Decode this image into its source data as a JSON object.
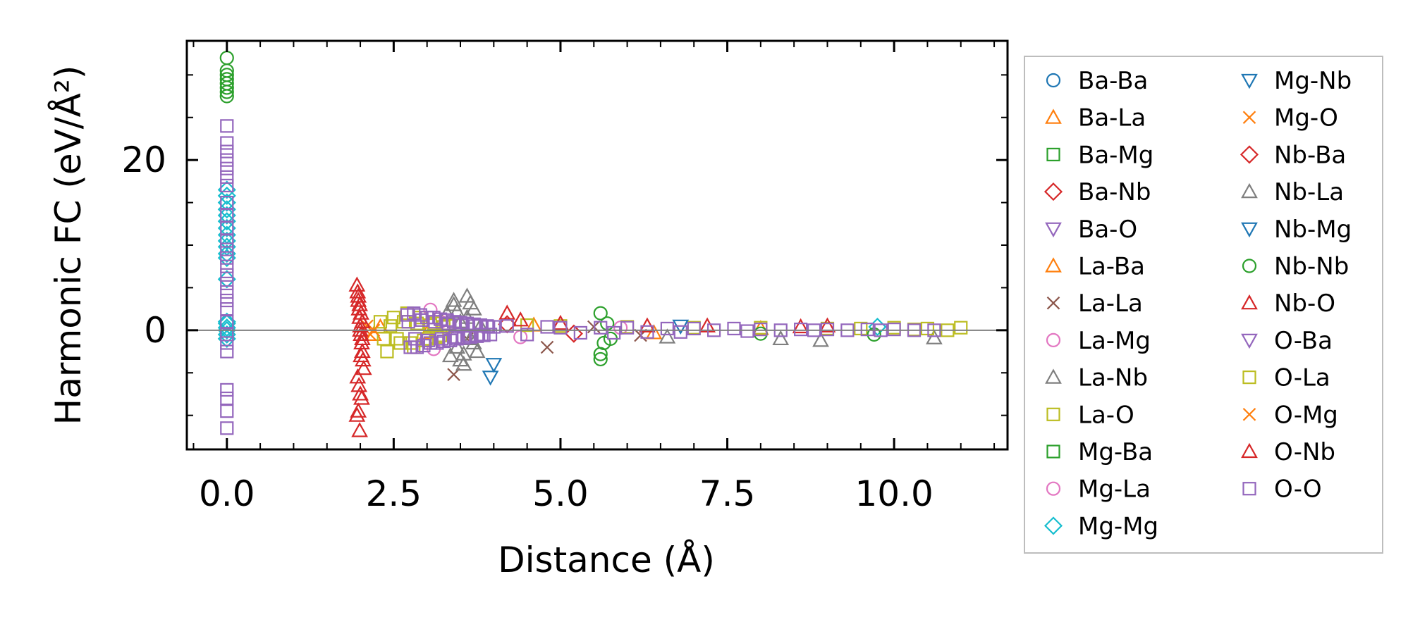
{
  "chart_data": {
    "type": "scatter",
    "title": "",
    "xlabel": "Distance (Å)",
    "ylabel": "Harmonic FC (eV/Å²)",
    "xlim": [
      -0.6,
      11.7
    ],
    "ylim": [
      -14,
      34
    ],
    "xticks": [
      0.0,
      2.5,
      5.0,
      7.5,
      10.0
    ],
    "xtick_labels": [
      "0.0",
      "2.5",
      "5.0",
      "7.5",
      "10.0"
    ],
    "yticks": [
      0,
      20
    ],
    "ytick_labels": [
      "0",
      "20"
    ],
    "minor_x_step": 0.5,
    "minor_y_step": 5,
    "zero_line": true,
    "grid": false,
    "legend_position": "outside-right",
    "colors": {
      "blue": "#1f77b4",
      "orange": "#ff7f0e",
      "green": "#2ca02c",
      "red": "#d62728",
      "purple": "#9467bd",
      "brown": "#8c564b",
      "pink": "#e377c2",
      "gray": "#7f7f7f",
      "olive": "#bcbd22",
      "cyan": "#17becf"
    },
    "series": [
      {
        "name": "Ba-Ba",
        "marker": "circle",
        "color": "#1f77b4",
        "x": [],
        "y": []
      },
      {
        "name": "Ba-La",
        "marker": "triangle-up",
        "color": "#ff7f0e",
        "x": [],
        "y": []
      },
      {
        "name": "Ba-Mg",
        "marker": "square",
        "color": "#2ca02c",
        "x": [],
        "y": []
      },
      {
        "name": "Ba-Nb",
        "marker": "diamond",
        "color": "#d62728",
        "x": [],
        "y": []
      },
      {
        "name": "Ba-O",
        "marker": "triangle-down",
        "color": "#9467bd",
        "x": [],
        "y": []
      },
      {
        "name": "La-Ba",
        "marker": "triangle-up",
        "color": "#ff7f0e",
        "x": [
          2.2,
          2.3,
          3.0,
          4.6,
          6.4,
          8.0
        ],
        "y": [
          -0.5,
          0.4,
          -0.3,
          0.6,
          -0.3,
          0.2
        ]
      },
      {
        "name": "La-La",
        "marker": "x",
        "color": "#8c564b",
        "x": [
          3.4,
          3.6,
          4.8,
          5.5,
          6.2
        ],
        "y": [
          -5.2,
          -1.0,
          -2.0,
          0.4,
          -0.6
        ]
      },
      {
        "name": "La-Mg",
        "marker": "circle",
        "color": "#e377c2",
        "x": [
          3.05,
          3.1,
          3.2,
          4.4,
          5.9
        ],
        "y": [
          2.4,
          -2.2,
          1.0,
          -0.8,
          0.3
        ]
      },
      {
        "name": "La-Nb",
        "marker": "triangle-up",
        "color": "#7f7f7f",
        "x": [
          3.3,
          3.35,
          3.4,
          3.45,
          3.5,
          3.55,
          3.6,
          3.65,
          3.7,
          3.75,
          3.8,
          3.4,
          3.5,
          3.6,
          3.7,
          3.45,
          3.55,
          3.65,
          6.6,
          8.3,
          8.9,
          10.6
        ],
        "y": [
          2.0,
          -3.0,
          3.0,
          -2.0,
          1.0,
          -4.0,
          4.0,
          -1.0,
          2.5,
          -2.5,
          0.5,
          3.5,
          -3.5,
          1.5,
          -1.5,
          2.2,
          -2.8,
          3.2,
          -0.8,
          -1.0,
          -1.2,
          -0.9
        ]
      },
      {
        "name": "La-O",
        "marker": "square",
        "color": "#bcbd22",
        "x": [
          2.3,
          2.4,
          2.5,
          2.6,
          2.7,
          2.8,
          2.9,
          3.0,
          3.1,
          3.2,
          3.3,
          2.35,
          2.45,
          2.55,
          2.65,
          2.75,
          2.85,
          2.95,
          3.05,
          3.15,
          3.25,
          4.5,
          5.0,
          6.0,
          7.0,
          8.0,
          9.0,
          9.5,
          10.0,
          10.3,
          10.5,
          10.8,
          11.0
        ],
        "y": [
          1.0,
          -2.5,
          1.5,
          -1.5,
          2.0,
          -2.0,
          1.5,
          -1.0,
          0.8,
          -0.6,
          0.5,
          -1.0,
          0.5,
          -1.0,
          1.0,
          -1.5,
          0.8,
          -1.2,
          0.6,
          -0.8,
          0.4,
          0.6,
          0.5,
          0.4,
          0.3,
          0.3,
          0.2,
          0.2,
          0.3,
          0.1,
          0.2,
          0.0,
          0.3
        ]
      },
      {
        "name": "Mg-Ba",
        "marker": "square",
        "color": "#2ca02c",
        "x": [],
        "y": []
      },
      {
        "name": "Mg-La",
        "marker": "circle",
        "color": "#e377c2",
        "x": [],
        "y": []
      },
      {
        "name": "Mg-Mg",
        "marker": "diamond",
        "color": "#17becf",
        "x": [
          0,
          0,
          0,
          0,
          0,
          0,
          0,
          0,
          0,
          0,
          0,
          0,
          0,
          0,
          0,
          0,
          0,
          0,
          0,
          9.75
        ],
        "y": [
          16.5,
          15.8,
          15.0,
          14.2,
          13.5,
          12.8,
          12.0,
          11.2,
          10.5,
          9.8,
          9.0,
          8.5,
          6.0,
          1.0,
          0.8,
          -0.5,
          -1.0,
          0.3,
          0.0,
          0.4
        ]
      },
      {
        "name": "Mg-Nb",
        "marker": "triangle-down",
        "color": "#1f77b4",
        "x": [
          3.95,
          4.0,
          6.8
        ],
        "y": [
          -5.5,
          -4.0,
          0.5
        ]
      },
      {
        "name": "Mg-O",
        "marker": "x",
        "color": "#ff7f0e",
        "x": [
          2.1,
          2.15,
          2.2
        ],
        "y": [
          0.5,
          -0.5,
          0.0
        ]
      },
      {
        "name": "Nb-Ba",
        "marker": "diamond",
        "color": "#d62728",
        "x": [
          4.2,
          5.2
        ],
        "y": [
          0.7,
          -0.4
        ]
      },
      {
        "name": "Nb-La",
        "marker": "triangle-up",
        "color": "#7f7f7f",
        "x": [],
        "y": []
      },
      {
        "name": "Nb-Mg",
        "marker": "triangle-down",
        "color": "#1f77b4",
        "x": [],
        "y": []
      },
      {
        "name": "Nb-Nb",
        "marker": "circle",
        "color": "#2ca02c",
        "x": [
          0,
          0,
          0,
          0,
          0,
          0,
          0,
          0,
          5.6,
          5.6,
          5.6,
          5.65,
          5.7,
          5.75,
          8.0,
          9.7
        ],
        "y": [
          32.0,
          30.5,
          30.0,
          29.5,
          29.0,
          28.5,
          28.0,
          27.5,
          2.0,
          -2.8,
          -3.4,
          -1.5,
          0.8,
          -1.0,
          -0.4,
          -0.5
        ]
      },
      {
        "name": "Nb-O",
        "marker": "triangle-up",
        "color": "#d62728",
        "x": [
          1.95,
          1.96,
          1.97,
          1.98,
          1.99,
          2.0,
          2.01,
          2.02,
          2.03,
          2.04,
          2.05,
          1.97,
          1.99,
          2.01,
          2.03,
          1.96,
          1.98,
          2.0,
          2.02,
          1.95,
          1.97,
          1.99,
          2.01,
          2.03,
          2.0,
          4.2,
          4.4,
          5.0,
          6.3,
          7.2,
          8.6,
          9.0
        ],
        "y": [
          5.3,
          4.5,
          3.5,
          2.5,
          1.5,
          0.5,
          -0.5,
          -1.5,
          -2.5,
          -3.5,
          -4.5,
          4.0,
          3.0,
          2.0,
          1.0,
          -5.5,
          -6.5,
          -7.5,
          -8.0,
          -10.0,
          -9.5,
          -11.8,
          -3.0,
          -1.0,
          0.0,
          2.0,
          1.2,
          0.8,
          0.5,
          0.5,
          0.4,
          0.5
        ]
      },
      {
        "name": "O-Ba",
        "marker": "triangle-down",
        "color": "#9467bd",
        "x": [],
        "y": []
      },
      {
        "name": "O-La",
        "marker": "square",
        "color": "#bcbd22",
        "x": [],
        "y": []
      },
      {
        "name": "O-Mg",
        "marker": "x",
        "color": "#ff7f0e",
        "x": [],
        "y": []
      },
      {
        "name": "O-Nb",
        "marker": "triangle-up",
        "color": "#d62728",
        "x": [],
        "y": []
      },
      {
        "name": "O-O",
        "marker": "square",
        "color": "#9467bd",
        "x": [
          0,
          0,
          0,
          0,
          0,
          0,
          0,
          0,
          0,
          0,
          0,
          0,
          0,
          0,
          0,
          0,
          0,
          0,
          0,
          0,
          0,
          0,
          0,
          0,
          0,
          0,
          0,
          2.7,
          2.75,
          2.8,
          2.85,
          2.9,
          2.95,
          3.0,
          3.05,
          3.1,
          3.15,
          3.2,
          3.25,
          3.3,
          3.35,
          3.4,
          3.45,
          3.5,
          3.55,
          3.6,
          3.65,
          3.7,
          3.75,
          3.8,
          3.85,
          3.9,
          3.95,
          4.0,
          2.72,
          2.82,
          2.92,
          3.02,
          3.12,
          3.22,
          3.32,
          3.42,
          3.52,
          3.62,
          3.72,
          3.82,
          3.92,
          4.2,
          4.5,
          4.8,
          5.0,
          5.3,
          5.6,
          5.8,
          6.0,
          6.3,
          6.6,
          6.8,
          7.0,
          7.3,
          7.6,
          7.8,
          8.0,
          8.3,
          8.6,
          8.8,
          9.0,
          9.3,
          9.6,
          9.8,
          10.0,
          10.3,
          10.6
        ],
        "y": [
          24.0,
          22.0,
          21.0,
          20.0,
          19.0,
          18.0,
          17.0,
          15.0,
          13.5,
          12.0,
          10.5,
          9.5,
          8.5,
          7.5,
          6.5,
          5.5,
          4.5,
          3.5,
          2.5,
          1.0,
          -0.5,
          -1.5,
          -2.5,
          -7.0,
          -8.0,
          -9.5,
          -11.5,
          1.8,
          -2.0,
          2.0,
          -2.0,
          1.8,
          -1.8,
          1.5,
          -1.5,
          1.5,
          -1.5,
          1.3,
          -1.3,
          1.2,
          -1.2,
          1.0,
          -1.0,
          0.9,
          -0.9,
          0.8,
          -0.8,
          0.7,
          -0.7,
          0.6,
          -0.6,
          0.5,
          -0.5,
          0.4,
          1.0,
          -1.0,
          1.2,
          -1.2,
          1.0,
          -1.0,
          0.8,
          -0.8,
          0.6,
          -0.6,
          0.5,
          -0.5,
          0.4,
          0.5,
          -0.5,
          0.4,
          0.3,
          -0.3,
          0.3,
          -0.3,
          0.3,
          -0.2,
          0.2,
          -0.2,
          0.2,
          0.0,
          0.2,
          -0.1,
          0.1,
          0.0,
          0.1,
          0.0,
          0.1,
          0.0,
          0.1,
          0.0,
          0.1,
          0.0,
          0.0
        ]
      }
    ]
  }
}
